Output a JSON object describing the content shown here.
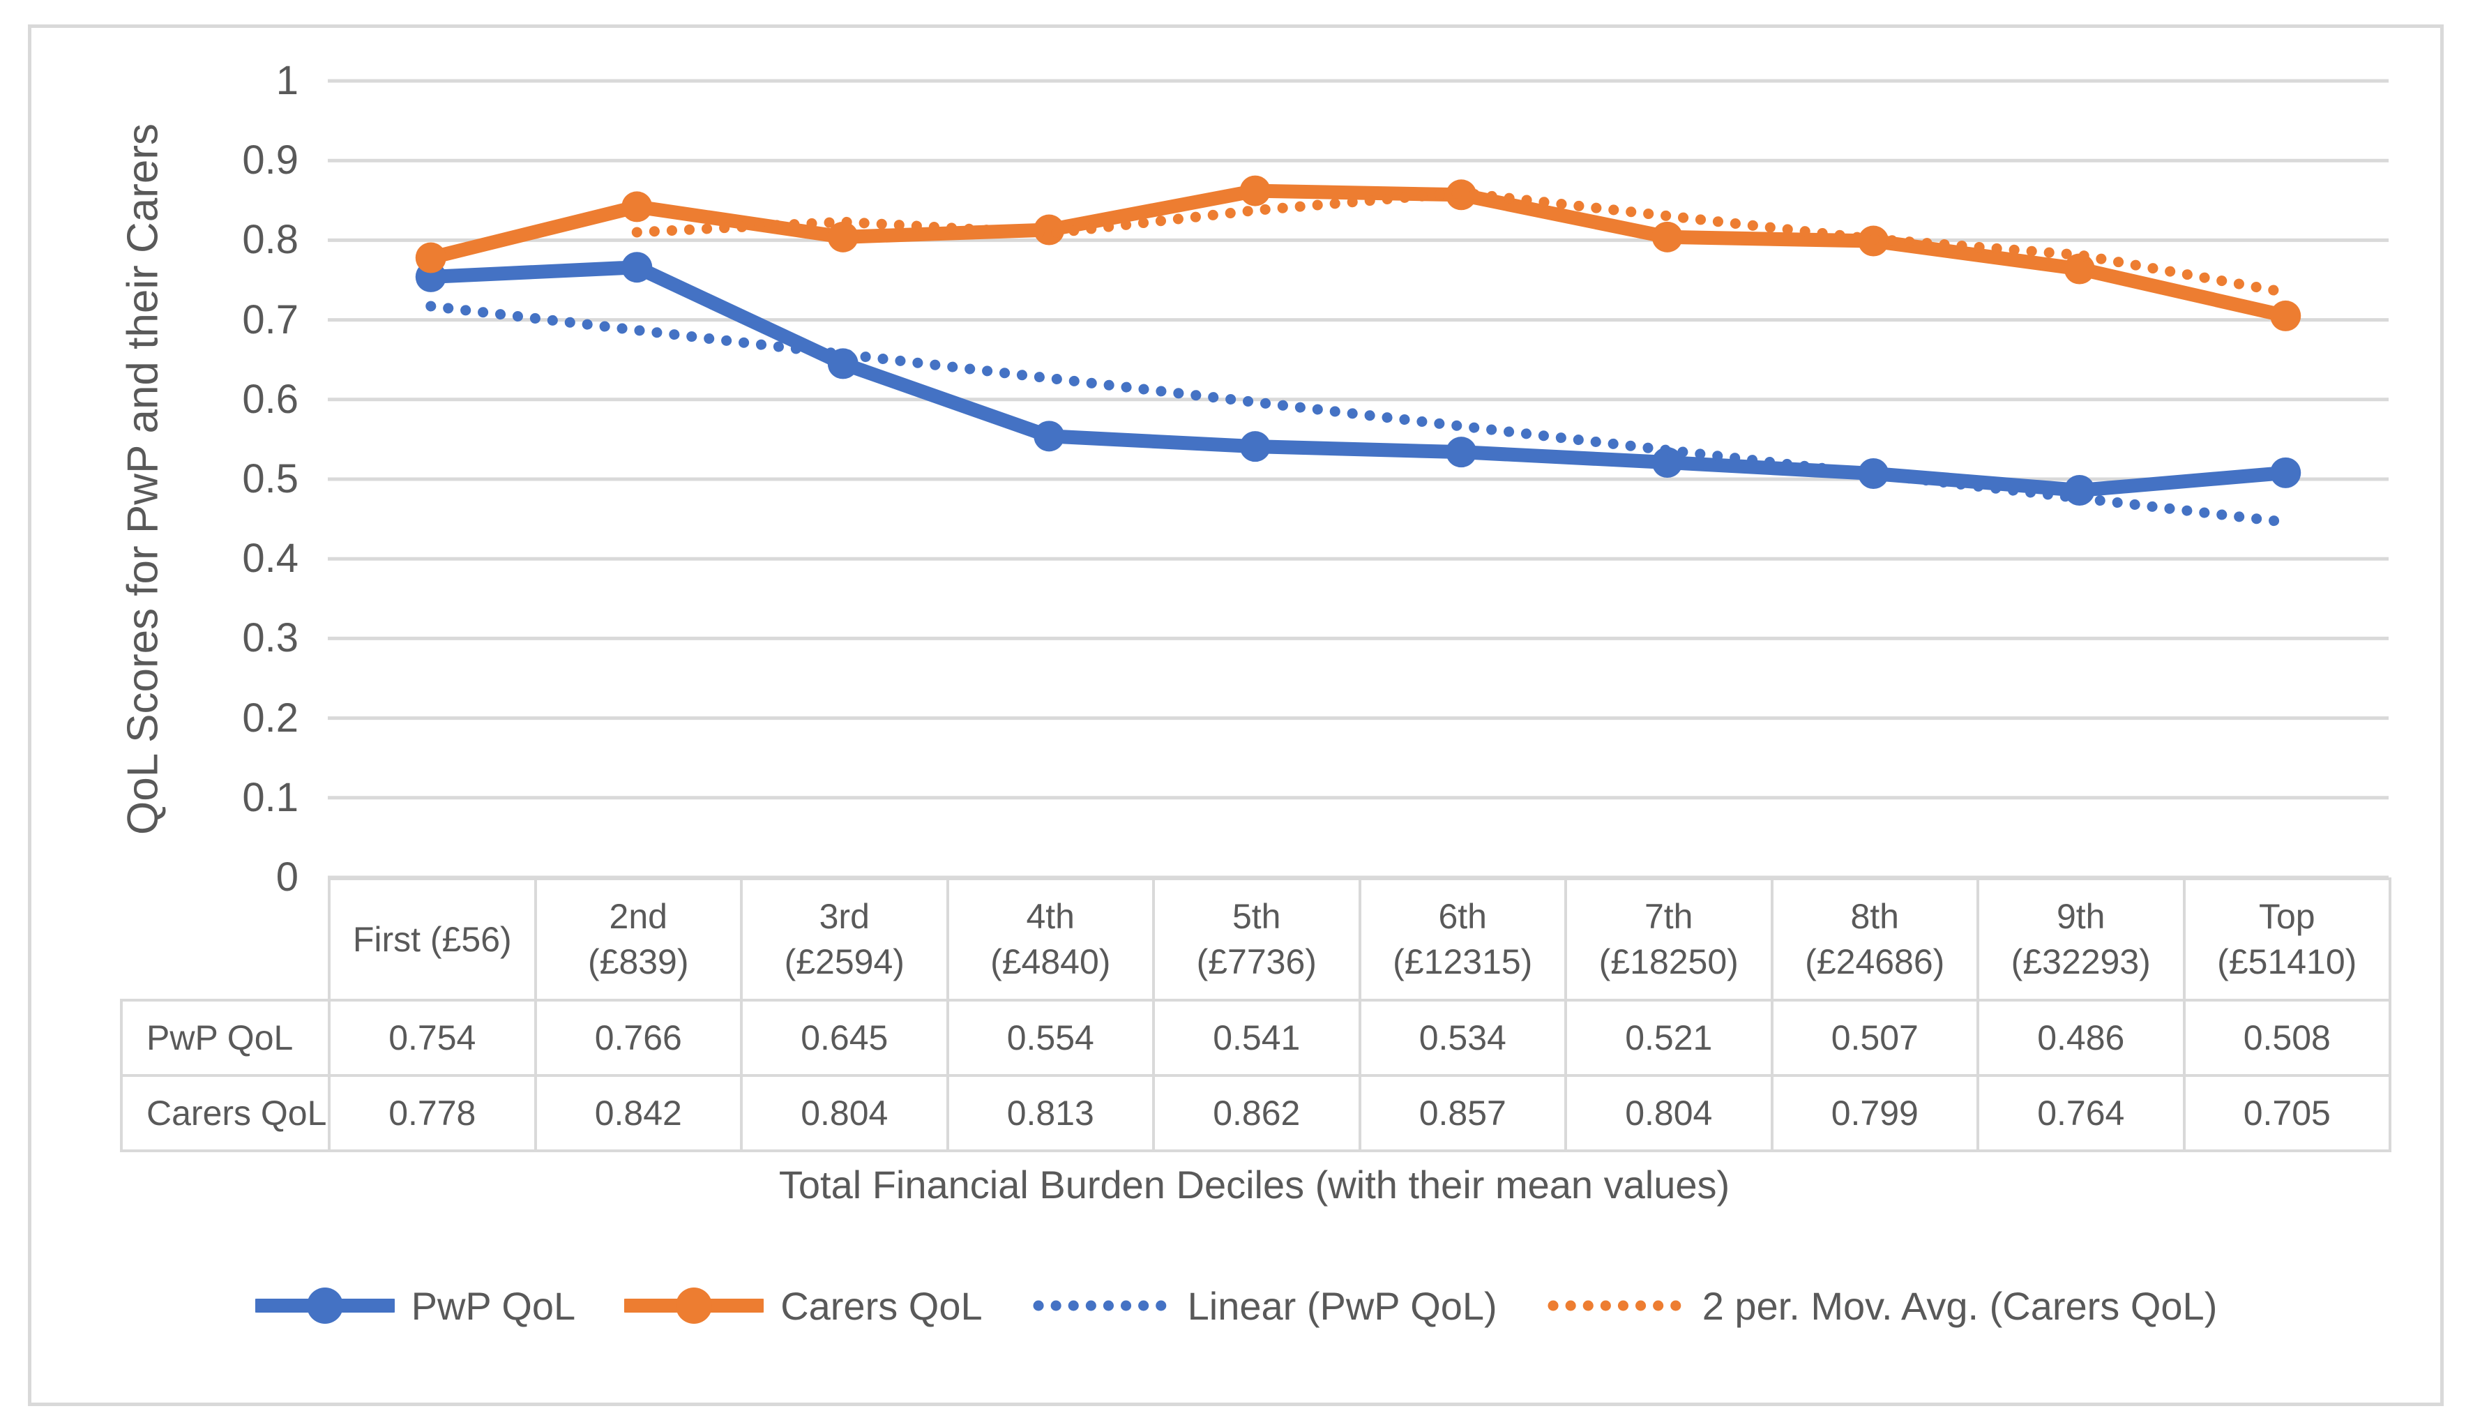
{
  "chart_data": {
    "type": "line",
    "title": "",
    "xlabel": "Total Financial Burden Deciles (with their mean values)",
    "ylabel": "QoL Scores for PwP and their Carers",
    "ylim": [
      0,
      1
    ],
    "yticks": [
      "1",
      "0.9",
      "0.8",
      "0.7",
      "0.6",
      "0.5",
      "0.4",
      "0.3",
      "0.2",
      "0.1",
      "0"
    ],
    "grid": "horizontal-only",
    "legend_position": "bottom",
    "data_table_shown": true,
    "categories": [
      "First (£56)",
      "2nd\n(£839)",
      "3rd\n(£2594)",
      "4th\n(£4840)",
      "5th\n(£7736)",
      "6th\n(£12315)",
      "7th\n(£18250)",
      "8th\n(£24686)",
      "9th\n(£32293)",
      "Top\n(£51410)"
    ],
    "series": [
      {
        "name": "PwP QoL",
        "color": "#4472C4",
        "line": "solid",
        "marker": "circle",
        "values": [
          0.754,
          0.766,
          0.645,
          0.554,
          0.541,
          0.534,
          0.521,
          0.507,
          0.486,
          0.508
        ]
      },
      {
        "name": "Carers QoL",
        "color": "#ED7D31",
        "line": "solid",
        "marker": "circle",
        "values": [
          0.778,
          0.842,
          0.804,
          0.813,
          0.862,
          0.857,
          0.804,
          0.799,
          0.764,
          0.705
        ]
      }
    ],
    "trendlines": [
      {
        "name": "Linear (PwP QoL)",
        "type": "linear",
        "source": 0,
        "color": "#4472C4",
        "line": "dotted"
      },
      {
        "name": "2 per. Mov. Avg. (Carers QoL)",
        "type": "moving_average",
        "period": 2,
        "source": 1,
        "color": "#ED7D31",
        "line": "dotted"
      }
    ],
    "value_format_decimals": 3
  },
  "styles": {
    "text_color": "#595959",
    "grid_color": "#D9D9D9",
    "border_color": "#D9D9D9",
    "background": "#FFFFFF"
  }
}
